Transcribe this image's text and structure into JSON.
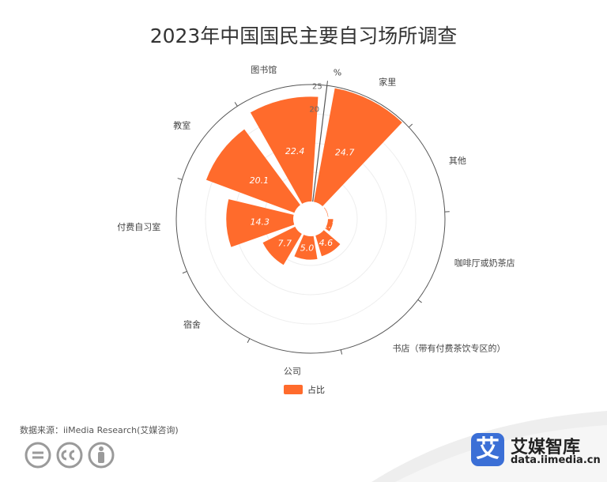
{
  "chart_data": {
    "type": "bar",
    "subtype": "polar",
    "title": "2023年中国国民主要自习场所调查",
    "unit": "%",
    "categories": [
      "家里",
      "其他",
      "咖啡厅或奶茶店",
      "书店（带有付费茶饮专区的）",
      "公司",
      "宿舍",
      "付费自习室",
      "教室",
      "图书馆"
    ],
    "series": [
      {
        "name": "占比",
        "values": [
          24.7,
          0.1,
          1.1,
          4.6,
          5.0,
          7.7,
          14.3,
          20.1,
          22.4
        ]
      }
    ],
    "radius_range": [
      0,
      25
    ],
    "radius_ticks": [
      "25",
      "20"
    ],
    "legend_position": "bottom",
    "data_labels": true,
    "colors": {
      "bar": "#ff6b2c",
      "label": "#ffffff",
      "axis": "#555555",
      "grid": "#eeeeee"
    }
  },
  "footer": {
    "source": "数据来源：iiMedia Research(艾媒咨询)",
    "brand_char": "艾",
    "brand_name": "艾媒智库",
    "brand_url": "data.iimedia.cn"
  }
}
